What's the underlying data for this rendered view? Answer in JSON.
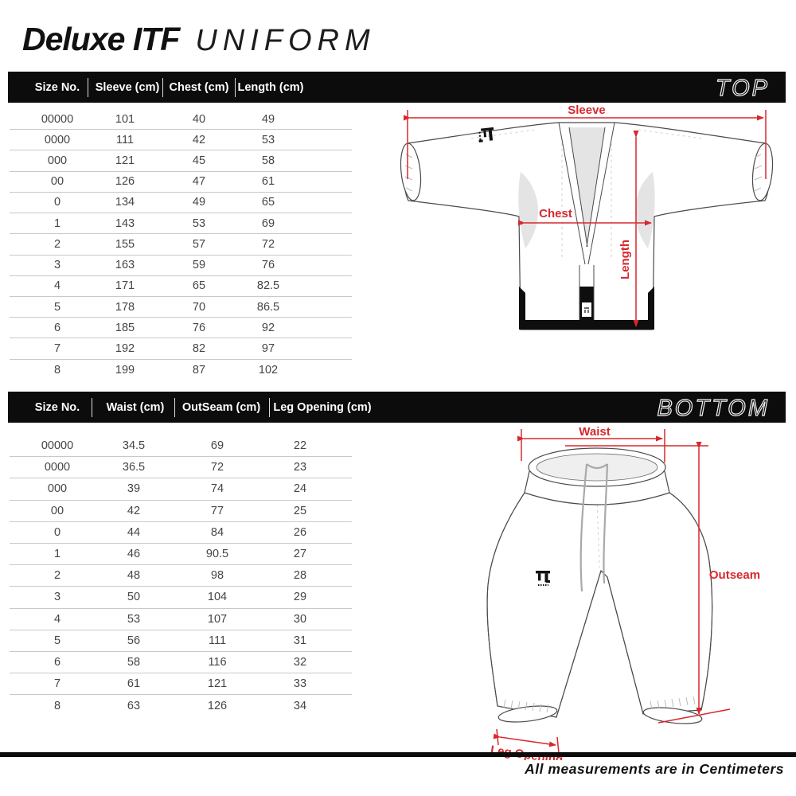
{
  "title": {
    "brand": "Deluxe ITF",
    "product": "UNIFORM"
  },
  "colors": {
    "accent_red": "#d7282d",
    "bar_black": "#0c0c0c"
  },
  "top_section": {
    "bar_label": "TOP",
    "columns": [
      "Size No.",
      "Sleeve (cm)",
      "Chest (cm)",
      "Length (cm)"
    ],
    "rows": [
      [
        "00000",
        "101",
        "40",
        "49"
      ],
      [
        "0000",
        "111",
        "42",
        "53"
      ],
      [
        "000",
        "121",
        "45",
        "58"
      ],
      [
        "00",
        "126",
        "47",
        "61"
      ],
      [
        "0",
        "134",
        "49",
        "65"
      ],
      [
        "1",
        "143",
        "53",
        "69"
      ],
      [
        "2",
        "155",
        "57",
        "72"
      ],
      [
        "3",
        "163",
        "59",
        "76"
      ],
      [
        "4",
        "171",
        "65",
        "82.5"
      ],
      [
        "5",
        "178",
        "70",
        "86.5"
      ],
      [
        "6",
        "185",
        "76",
        "92"
      ],
      [
        "7",
        "192",
        "82",
        "97"
      ],
      [
        "8",
        "199",
        "87",
        "102"
      ]
    ],
    "diagram": {
      "sleeve_label": "Sleeve",
      "chest_label": "Chest",
      "length_label": "Length"
    }
  },
  "bottom_section": {
    "bar_label": "BOTTOM",
    "columns": [
      "Size No.",
      "Waist (cm)",
      "OutSeam (cm)",
      "Leg Opening (cm)"
    ],
    "rows": [
      [
        "00000",
        "34.5",
        "69",
        "22"
      ],
      [
        "0000",
        "36.5",
        "72",
        "23"
      ],
      [
        "000",
        "39",
        "74",
        "24"
      ],
      [
        "00",
        "42",
        "77",
        "25"
      ],
      [
        "0",
        "44",
        "84",
        "26"
      ],
      [
        "1",
        "46",
        "90.5",
        "27"
      ],
      [
        "2",
        "48",
        "98",
        "28"
      ],
      [
        "3",
        "50",
        "104",
        "29"
      ],
      [
        "4",
        "53",
        "107",
        "30"
      ],
      [
        "5",
        "56",
        "111",
        "31"
      ],
      [
        "6",
        "58",
        "116",
        "32"
      ],
      [
        "7",
        "61",
        "121",
        "33"
      ],
      [
        "8",
        "63",
        "126",
        "34"
      ]
    ],
    "diagram": {
      "waist_label": "Waist",
      "outseam_label": "Outseam",
      "leg_opening_label": "Leg Opening"
    }
  },
  "footer": {
    "note": "All measurements are in Centimeters"
  }
}
